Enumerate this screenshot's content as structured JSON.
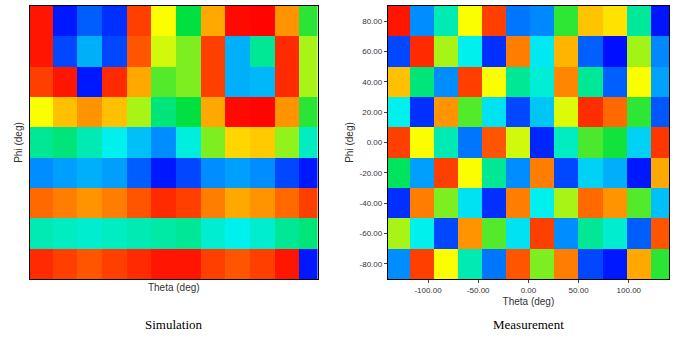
{
  "chart_data": [
    {
      "type": "heatmap",
      "caption": "Simulation",
      "xlabel": "Theta (deg)",
      "ylabel": "Phi (deg)",
      "x": [
        -130,
        -106,
        -82,
        -58,
        -34,
        -10,
        14,
        38,
        62,
        86,
        110,
        134
      ],
      "y": [
        -80,
        -60,
        -40,
        -20,
        0,
        20,
        40,
        60,
        80
      ],
      "z": [
        [
          160,
          150,
          140,
          150,
          160,
          170,
          170,
          150,
          140,
          150,
          170,
          -170
        ],
        [
          -40,
          -45,
          -50,
          -45,
          -40,
          -35,
          -30,
          -50,
          -60,
          -50,
          -30,
          -20
        ],
        [
          130,
          120,
          110,
          120,
          140,
          160,
          150,
          120,
          100,
          110,
          130,
          150
        ],
        [
          -120,
          -110,
          -100,
          -110,
          -140,
          -170,
          -150,
          -120,
          -110,
          -120,
          -150,
          -170
        ],
        [
          -30,
          -20,
          -40,
          -60,
          -90,
          -120,
          -55,
          30,
          80,
          85,
          35,
          -45
        ],
        [
          60,
          90,
          110,
          90,
          40,
          -20,
          0,
          100,
          175,
          178,
          110,
          10
        ],
        [
          150,
          170,
          -170,
          160,
          100,
          20,
          30,
          150,
          -100,
          -95,
          160,
          40
        ],
        [
          170,
          -150,
          -100,
          -150,
          140,
          50,
          30,
          150,
          -100,
          -30,
          160,
          40
        ],
        [
          170,
          -170,
          -140,
          -160,
          150,
          60,
          0,
          100,
          175,
          178,
          110,
          10
        ]
      ],
      "zlim": [
        -180,
        180
      ],
      "xlim": [
        -140,
        140
      ],
      "ylim": [
        -90,
        90
      ],
      "tick_labels": false
    },
    {
      "type": "heatmap",
      "caption": "Measurement",
      "xlabel": "Theta (deg)",
      "ylabel": "Phi (deg)",
      "x": [
        -130,
        -106,
        -82,
        -58,
        -34,
        -10,
        14,
        38,
        62,
        86,
        110,
        134
      ],
      "y": [
        -80,
        -60,
        -40,
        -20,
        0,
        20,
        40,
        60,
        80
      ],
      "z": [
        [
          -120,
          150,
          60,
          -40,
          -130,
          140,
          30,
          120,
          -150,
          -170,
          100,
          10
        ],
        [
          40,
          -60,
          -150,
          110,
          20,
          -70,
          150,
          -120,
          -30,
          -50,
          -140,
          140
        ],
        [
          -160,
          120,
          30,
          -70,
          -160,
          120,
          -60,
          40,
          130,
          110,
          20,
          -90
        ],
        [
          -10,
          -110,
          150,
          60,
          -30,
          -120,
          120,
          -150,
          -80,
          -100,
          -170,
          100
        ],
        [
          150,
          60,
          -40,
          -130,
          140,
          50,
          -164,
          -45,
          18,
          4,
          -80,
          154
        ],
        [
          -60,
          -160,
          110,
          20,
          -70,
          -150,
          -87,
          53,
          158,
          130,
          11,
          -143
        ],
        [
          90,
          -20,
          -120,
          150,
          60,
          -30,
          -52,
          116,
          -30,
          -139,
          60,
          -108
        ],
        [
          -150,
          160,
          40,
          -60,
          -160,
          120,
          -66,
          95,
          -139,
          -174,
          39,
          -122
        ],
        [
          170,
          -120,
          -40,
          60,
          150,
          -130,
          -122,
          11,
          88,
          74,
          -31,
          -171
        ]
      ],
      "zlim": [
        -180,
        180
      ],
      "xlim": [
        -140,
        140
      ],
      "ylim": [
        -90,
        90
      ],
      "xticks": [
        {
          "value": -100,
          "label": "-100.00"
        },
        {
          "value": -50,
          "label": "-50.00"
        },
        {
          "value": 0,
          "label": "0.00"
        },
        {
          "value": 50,
          "label": "50.00"
        },
        {
          "value": 100,
          "label": "100.00"
        }
      ],
      "yticks": [
        {
          "value": -80,
          "label": "-80.00"
        },
        {
          "value": -60,
          "label": "-60.00"
        },
        {
          "value": -40,
          "label": "-40.00"
        },
        {
          "value": -20,
          "label": "-20.00"
        },
        {
          "value": 0,
          "label": "0.00"
        },
        {
          "value": 20,
          "label": "20.00"
        },
        {
          "value": 40,
          "label": "40.00"
        },
        {
          "value": 60,
          "label": "60.00"
        },
        {
          "value": 80,
          "label": "80.00"
        }
      ]
    }
  ]
}
